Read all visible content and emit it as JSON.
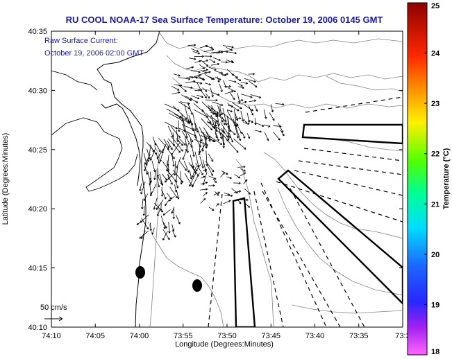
{
  "chart_data": {
    "type": "vector-field",
    "title": "RU COOL  NOAA-17  Sea Surface Temperature:  October 19, 2006 0145 GMT",
    "annotation": [
      "Raw Surface Current:",
      "October 19, 2006 02:00 GMT"
    ],
    "scale_label": "50 cm/s",
    "xlabel": "Longitude (Degrees:Minutes)",
    "ylabel": "Latitude (Degrees:Minutes)",
    "x_ticks": [
      "74:10",
      "74:05",
      "74:00",
      "73:55",
      "73:50",
      "73:45",
      "73:40",
      "73:35",
      "73:3"
    ],
    "y_ticks": [
      "40:35",
      "40:30",
      "40:25",
      "40:20",
      "40:15",
      "40:10"
    ],
    "xlim_minutes_west": [
      10,
      30
    ],
    "ylim_minutes_north": [
      10,
      35
    ],
    "colorbar": {
      "label": "Temperature (°C)",
      "min": 18,
      "max": 25,
      "ticks": [
        "25",
        "24",
        "23",
        "22",
        "21",
        "20",
        "19",
        "18"
      ]
    }
  }
}
